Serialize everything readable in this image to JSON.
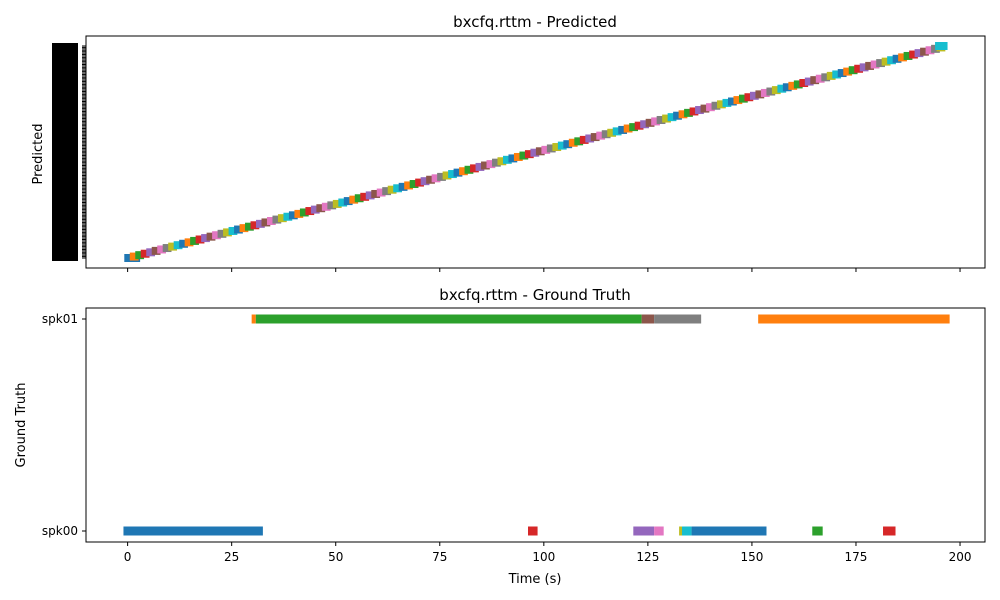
{
  "chart_data": [
    {
      "type": "timeline",
      "title": "bxcfq.rttm - Predicted",
      "xlabel": "",
      "ylabel": "Predicted",
      "xlim": [
        -10,
        206
      ],
      "xticks": [
        0,
        25,
        50,
        75,
        100,
        125,
        150,
        175,
        200
      ],
      "tick_labels_visible": false,
      "description_rows": "one row per predicted segment, rows increasing with time (approx. 150 rows)",
      "segment_count": 150,
      "first_segment": [
        -0.8,
        3.0
      ],
      "last_segment": [
        194.0,
        197.0
      ],
      "palette": [
        "#1f77b4",
        "#ff7f0e",
        "#2ca02c",
        "#d62728",
        "#9467bd",
        "#8c564b",
        "#e377c2",
        "#7f7f7f",
        "#bcbd22",
        "#17becf"
      ]
    },
    {
      "type": "timeline",
      "title": "bxcfq.rttm - Ground Truth",
      "xlabel": "Time (s)",
      "ylabel": "Ground Truth",
      "xlim": [
        -10,
        206
      ],
      "xticks": [
        0,
        25,
        50,
        75,
        100,
        125,
        150,
        175,
        200
      ],
      "xtick_labels": [
        "0",
        "25",
        "50",
        "75",
        "100",
        "125",
        "150",
        "175",
        "200"
      ],
      "speakers": [
        "spk00",
        "spk01"
      ],
      "segments": [
        {
          "speaker": "spk00",
          "start": -1.0,
          "end": 32.5,
          "color": "#1f77b4"
        },
        {
          "speaker": "spk01",
          "start": 29.8,
          "end": 30.8,
          "color": "#ff7f0e"
        },
        {
          "speaker": "spk01",
          "start": 30.8,
          "end": 123.5,
          "color": "#2ca02c"
        },
        {
          "speaker": "spk00",
          "start": 96.2,
          "end": 98.5,
          "color": "#d62728"
        },
        {
          "speaker": "spk00",
          "start": 121.5,
          "end": 126.5,
          "color": "#9467bd"
        },
        {
          "speaker": "spk01",
          "start": 123.5,
          "end": 126.5,
          "color": "#8c564b"
        },
        {
          "speaker": "spk00",
          "start": 126.5,
          "end": 128.8,
          "color": "#e377c2"
        },
        {
          "speaker": "spk01",
          "start": 126.5,
          "end": 137.8,
          "color": "#7f7f7f"
        },
        {
          "speaker": "spk00",
          "start": 132.5,
          "end": 133.2,
          "color": "#bcbd22"
        },
        {
          "speaker": "spk00",
          "start": 133.2,
          "end": 135.5,
          "color": "#17becf"
        },
        {
          "speaker": "spk00",
          "start": 135.5,
          "end": 153.5,
          "color": "#1f77b4"
        },
        {
          "speaker": "spk01",
          "start": 151.5,
          "end": 197.5,
          "color": "#ff7f0e"
        },
        {
          "speaker": "spk00",
          "start": 164.5,
          "end": 167.0,
          "color": "#2ca02c"
        },
        {
          "speaker": "spk00",
          "start": 181.5,
          "end": 184.5,
          "color": "#d62728"
        }
      ]
    }
  ]
}
